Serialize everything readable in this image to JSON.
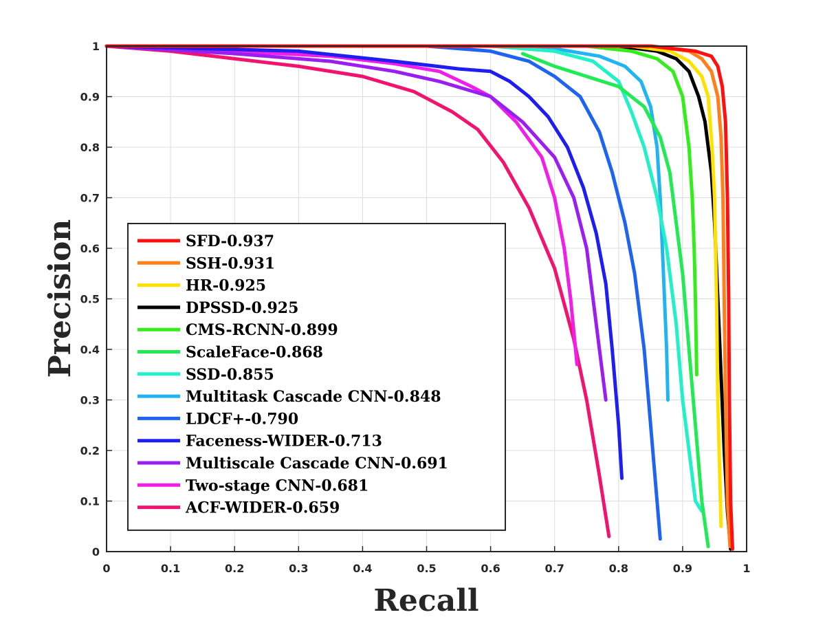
{
  "chart_data": {
    "type": "line",
    "title": "",
    "xlabel": "Recall",
    "ylabel": "Precision",
    "xlim": [
      0,
      1
    ],
    "ylim": [
      0,
      1
    ],
    "grid": true,
    "legend_position": "lower-left",
    "x_ticks": [
      "0",
      "0.1",
      "0.2",
      "0.3",
      "0.4",
      "0.5",
      "0.6",
      "0.7",
      "0.8",
      "0.9",
      "1"
    ],
    "y_ticks": [
      "0",
      "0.1",
      "0.2",
      "0.3",
      "0.4",
      "0.5",
      "0.6",
      "0.7",
      "0.8",
      "0.9",
      "1"
    ],
    "series": [
      {
        "name": "SFD-0.937",
        "color": "#ff1010",
        "points": [
          [
            0,
            1
          ],
          [
            0.85,
            1
          ],
          [
            0.92,
            0.99
          ],
          [
            0.945,
            0.98
          ],
          [
            0.955,
            0.96
          ],
          [
            0.962,
            0.92
          ],
          [
            0.967,
            0.85
          ],
          [
            0.97,
            0.7
          ],
          [
            0.972,
            0.5
          ],
          [
            0.973,
            0.3
          ],
          [
            0.975,
            0.1
          ],
          [
            0.978,
            0.005
          ]
        ]
      },
      {
        "name": "SSH-0.931",
        "color": "#ff7f1a",
        "points": [
          [
            0,
            1
          ],
          [
            0.85,
            1
          ],
          [
            0.91,
            0.99
          ],
          [
            0.93,
            0.975
          ],
          [
            0.945,
            0.95
          ],
          [
            0.955,
            0.9
          ],
          [
            0.96,
            0.82
          ],
          [
            0.963,
            0.7
          ],
          [
            0.965,
            0.5
          ],
          [
            0.967,
            0.3
          ],
          [
            0.97,
            0.1
          ],
          [
            0.974,
            0.01
          ]
        ]
      },
      {
        "name": "HR-0.925",
        "color": "#ffe100",
        "points": [
          [
            0,
            1
          ],
          [
            0.82,
            1
          ],
          [
            0.88,
            0.99
          ],
          [
            0.91,
            0.97
          ],
          [
            0.93,
            0.94
          ],
          [
            0.94,
            0.9
          ],
          [
            0.946,
            0.8
          ],
          [
            0.95,
            0.7
          ],
          [
            0.953,
            0.5
          ],
          [
            0.955,
            0.3
          ],
          [
            0.96,
            0.05
          ]
        ]
      },
      {
        "name": "DPSSD-0.925",
        "color": "#000000",
        "points": [
          [
            0,
            1
          ],
          [
            0.8,
            1
          ],
          [
            0.86,
            0.99
          ],
          [
            0.89,
            0.975
          ],
          [
            0.91,
            0.95
          ],
          [
            0.925,
            0.9
          ],
          [
            0.935,
            0.85
          ],
          [
            0.945,
            0.75
          ],
          [
            0.95,
            0.65
          ],
          [
            0.955,
            0.5
          ],
          [
            0.96,
            0.35
          ],
          [
            0.965,
            0.2
          ],
          [
            0.97,
            0.08
          ],
          [
            0.975,
            0.005
          ]
        ]
      },
      {
        "name": "CMS-RCNN-0.899",
        "color": "#33ee1a",
        "points": [
          [
            0,
            1
          ],
          [
            0.75,
            1
          ],
          [
            0.82,
            0.99
          ],
          [
            0.86,
            0.975
          ],
          [
            0.885,
            0.95
          ],
          [
            0.9,
            0.9
          ],
          [
            0.91,
            0.8
          ],
          [
            0.915,
            0.7
          ],
          [
            0.918,
            0.6
          ],
          [
            0.92,
            0.5
          ],
          [
            0.922,
            0.35
          ]
        ]
      },
      {
        "name": "ScaleFace-0.868",
        "color": "#22ea55",
        "points": [
          [
            0.65,
            0.985
          ],
          [
            0.7,
            0.96
          ],
          [
            0.75,
            0.94
          ],
          [
            0.8,
            0.92
          ],
          [
            0.84,
            0.88
          ],
          [
            0.865,
            0.82
          ],
          [
            0.88,
            0.75
          ],
          [
            0.89,
            0.65
          ],
          [
            0.9,
            0.55
          ],
          [
            0.91,
            0.4
          ],
          [
            0.92,
            0.25
          ],
          [
            0.93,
            0.1
          ],
          [
            0.94,
            0.01
          ]
        ]
      },
      {
        "name": "SSD-0.855",
        "color": "#22f0c8",
        "points": [
          [
            0,
            1
          ],
          [
            0.6,
            1
          ],
          [
            0.7,
            0.99
          ],
          [
            0.76,
            0.97
          ],
          [
            0.8,
            0.93
          ],
          [
            0.82,
            0.87
          ],
          [
            0.84,
            0.8
          ],
          [
            0.86,
            0.7
          ],
          [
            0.875,
            0.6
          ],
          [
            0.89,
            0.45
          ],
          [
            0.9,
            0.3
          ],
          [
            0.91,
            0.2
          ],
          [
            0.92,
            0.1
          ],
          [
            0.93,
            0.08
          ]
        ]
      },
      {
        "name": "Multitask Cascade CNN-0.848",
        "color": "#22b4f0",
        "points": [
          [
            0,
            1
          ],
          [
            0.6,
            1
          ],
          [
            0.7,
            0.995
          ],
          [
            0.77,
            0.98
          ],
          [
            0.81,
            0.96
          ],
          [
            0.835,
            0.93
          ],
          [
            0.85,
            0.88
          ],
          [
            0.86,
            0.8
          ],
          [
            0.865,
            0.7
          ],
          [
            0.87,
            0.55
          ],
          [
            0.875,
            0.4
          ],
          [
            0.877,
            0.3
          ]
        ]
      },
      {
        "name": "LDCF+-0.790",
        "color": "#1e64f0",
        "points": [
          [
            0,
            1
          ],
          [
            0.5,
            1
          ],
          [
            0.6,
            0.99
          ],
          [
            0.66,
            0.97
          ],
          [
            0.7,
            0.94
          ],
          [
            0.74,
            0.9
          ],
          [
            0.77,
            0.83
          ],
          [
            0.79,
            0.75
          ],
          [
            0.81,
            0.65
          ],
          [
            0.825,
            0.55
          ],
          [
            0.84,
            0.4
          ],
          [
            0.85,
            0.25
          ],
          [
            0.86,
            0.1
          ],
          [
            0.865,
            0.025
          ]
        ]
      },
      {
        "name": "Faceness-WIDER-0.713",
        "color": "#1e1ef0",
        "points": [
          [
            0,
            1
          ],
          [
            0.3,
            0.99
          ],
          [
            0.45,
            0.97
          ],
          [
            0.55,
            0.955
          ],
          [
            0.6,
            0.95
          ],
          [
            0.63,
            0.93
          ],
          [
            0.66,
            0.9
          ],
          [
            0.69,
            0.86
          ],
          [
            0.72,
            0.8
          ],
          [
            0.745,
            0.72
          ],
          [
            0.765,
            0.63
          ],
          [
            0.78,
            0.53
          ],
          [
            0.79,
            0.4
          ],
          [
            0.8,
            0.25
          ],
          [
            0.805,
            0.145
          ]
        ]
      },
      {
        "name": "Multiscale Cascade CNN-0.691",
        "color": "#9a1ef0",
        "points": [
          [
            0,
            1
          ],
          [
            0.2,
            0.985
          ],
          [
            0.35,
            0.97
          ],
          [
            0.45,
            0.95
          ],
          [
            0.52,
            0.93
          ],
          [
            0.6,
            0.9
          ],
          [
            0.65,
            0.85
          ],
          [
            0.7,
            0.78
          ],
          [
            0.73,
            0.7
          ],
          [
            0.75,
            0.6
          ],
          [
            0.76,
            0.5
          ],
          [
            0.77,
            0.4
          ],
          [
            0.78,
            0.3
          ]
        ]
      },
      {
        "name": "Two-stage CNN-0.681",
        "color": "#f01ee6",
        "points": [
          [
            0,
            1
          ],
          [
            0.2,
            0.99
          ],
          [
            0.35,
            0.98
          ],
          [
            0.45,
            0.965
          ],
          [
            0.52,
            0.95
          ],
          [
            0.57,
            0.92
          ],
          [
            0.6,
            0.9
          ],
          [
            0.64,
            0.85
          ],
          [
            0.68,
            0.78
          ],
          [
            0.7,
            0.7
          ],
          [
            0.715,
            0.6
          ],
          [
            0.725,
            0.5
          ],
          [
            0.735,
            0.37
          ]
        ]
      },
      {
        "name": "ACF-WIDER-0.659",
        "color": "#f0146e",
        "points": [
          [
            0,
            1
          ],
          [
            0.1,
            0.99
          ],
          [
            0.2,
            0.975
          ],
          [
            0.3,
            0.96
          ],
          [
            0.4,
            0.94
          ],
          [
            0.48,
            0.91
          ],
          [
            0.54,
            0.87
          ],
          [
            0.58,
            0.835
          ],
          [
            0.62,
            0.77
          ],
          [
            0.66,
            0.68
          ],
          [
            0.7,
            0.56
          ],
          [
            0.73,
            0.42
          ],
          [
            0.75,
            0.3
          ],
          [
            0.77,
            0.15
          ],
          [
            0.785,
            0.03
          ]
        ]
      }
    ]
  }
}
